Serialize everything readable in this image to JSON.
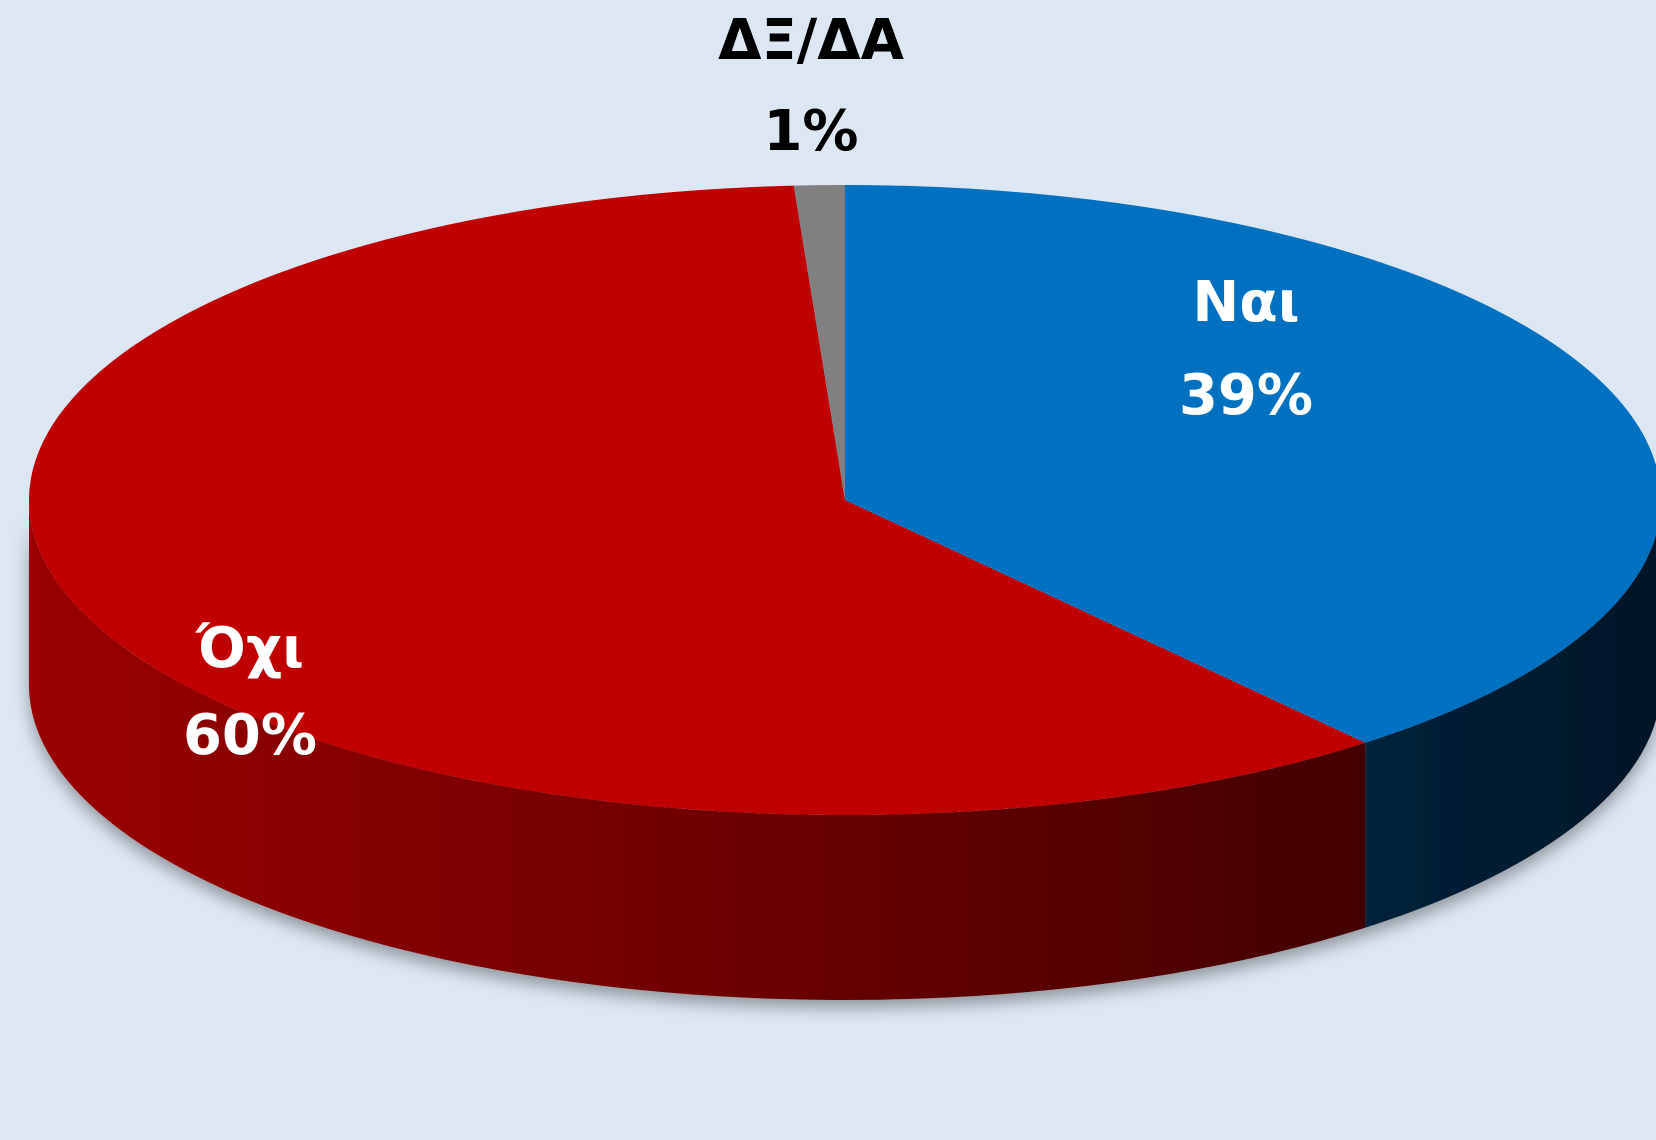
{
  "chart_data": {
    "type": "pie",
    "categories": [
      "Ναι",
      "Όχι",
      "ΔΞ/ΔΑ"
    ],
    "values": [
      39,
      60,
      1
    ],
    "value_labels": [
      "39%",
      "60%",
      "1%"
    ],
    "colors": [
      "#0070c0",
      "#c00000",
      "#808080"
    ]
  }
}
